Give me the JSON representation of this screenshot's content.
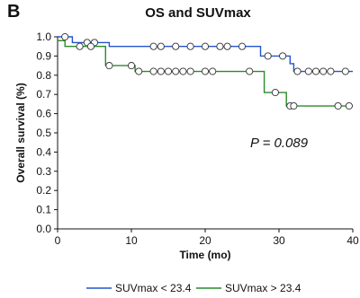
{
  "panel_label": "B",
  "chart_data": {
    "type": "line",
    "title": "OS and SUVmax",
    "xlabel": "Time (mo)",
    "ylabel": "Overall survival (%)",
    "xlim": [
      0,
      40
    ],
    "ylim": [
      0.0,
      1.0
    ],
    "x_ticks": [
      0,
      10,
      20,
      30,
      40
    ],
    "y_ticks": [
      0.0,
      0.1,
      0.2,
      0.3,
      0.4,
      0.5,
      0.6,
      0.7,
      0.8,
      0.9,
      1.0
    ],
    "annotation": "P = 0.089",
    "grid": false,
    "legend_position": "bottom",
    "series": [
      {
        "name": "SUVmax < 23.4",
        "color": "#2255cc",
        "steps": [
          [
            0,
            1.0
          ],
          [
            2,
            0.97
          ],
          [
            7,
            0.95
          ],
          [
            27.5,
            0.9
          ],
          [
            31.5,
            0.86
          ],
          [
            32,
            0.82
          ],
          [
            40,
            0.82
          ]
        ],
        "censored": [
          [
            1,
            1.0
          ],
          [
            4,
            0.97
          ],
          [
            5,
            0.97
          ],
          [
            13,
            0.95
          ],
          [
            14,
            0.95
          ],
          [
            16,
            0.95
          ],
          [
            18,
            0.95
          ],
          [
            20,
            0.95
          ],
          [
            22,
            0.95
          ],
          [
            23,
            0.95
          ],
          [
            25,
            0.95
          ],
          [
            28.5,
            0.9
          ],
          [
            30.5,
            0.9
          ],
          [
            32.5,
            0.82
          ],
          [
            34,
            0.82
          ],
          [
            35,
            0.82
          ],
          [
            36,
            0.82
          ],
          [
            37,
            0.82
          ],
          [
            39,
            0.82
          ]
        ]
      },
      {
        "name": "SUVmax > 23.4",
        "color": "#2a8a2a",
        "steps": [
          [
            0,
            0.98
          ],
          [
            1,
            0.95
          ],
          [
            6.5,
            0.85
          ],
          [
            10.5,
            0.82
          ],
          [
            18,
            0.82
          ],
          [
            23,
            0.82
          ],
          [
            28,
            0.71
          ],
          [
            31,
            0.64
          ],
          [
            40,
            0.64
          ]
        ],
        "censored": [
          [
            3,
            0.95
          ],
          [
            4.5,
            0.95
          ],
          [
            7,
            0.85
          ],
          [
            10,
            0.85
          ],
          [
            11,
            0.82
          ],
          [
            13,
            0.82
          ],
          [
            14,
            0.82
          ],
          [
            15,
            0.82
          ],
          [
            16,
            0.82
          ],
          [
            17,
            0.82
          ],
          [
            18,
            0.82
          ],
          [
            20,
            0.82
          ],
          [
            21,
            0.82
          ],
          [
            26,
            0.82
          ],
          [
            29.5,
            0.71
          ],
          [
            31.5,
            0.64
          ],
          [
            32,
            0.64
          ],
          [
            38,
            0.64
          ],
          [
            39.5,
            0.64
          ]
        ]
      }
    ]
  }
}
